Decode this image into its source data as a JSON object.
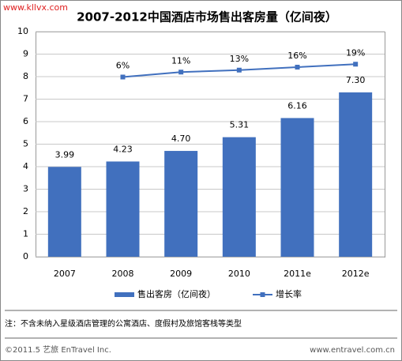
{
  "watermark": "www.kllvx.com",
  "chart_data": {
    "type": "bar-line",
    "title": "2007-2012中国酒店市场售出客房量（亿间夜）",
    "categories": [
      "2007",
      "2008",
      "2009",
      "2010",
      "2011e",
      "2012e"
    ],
    "series": [
      {
        "name": "售出客房（亿间夜）",
        "type": "bar",
        "color": "#4170be",
        "values": [
          3.99,
          4.23,
          4.7,
          5.31,
          6.16,
          7.3
        ],
        "value_labels": [
          "3.99",
          "4.23",
          "4.70",
          "5.31",
          "6.16",
          "7.30"
        ]
      },
      {
        "name": "增长率",
        "type": "line",
        "axis": "y2",
        "color": "#4170be",
        "values": [
          null,
          6,
          11,
          13,
          16,
          19
        ],
        "value_labels": [
          null,
          "6%",
          "11%",
          "13%",
          "16%",
          "19%"
        ]
      }
    ],
    "ylim": [
      0,
      10
    ],
    "yticks": [
      0,
      1,
      2,
      3,
      4,
      5,
      6,
      7,
      8,
      9,
      10
    ],
    "y2lim": [
      -176,
      52
    ],
    "grid": true,
    "legend": "bottom"
  },
  "note": "注：不含未纳入星级酒店管理的公寓酒店、度假村及旅馆客栈等类型",
  "footer": {
    "left": "©2011.5 艺旅 EnTravel Inc.",
    "right": "www.entravel.com.cn"
  }
}
